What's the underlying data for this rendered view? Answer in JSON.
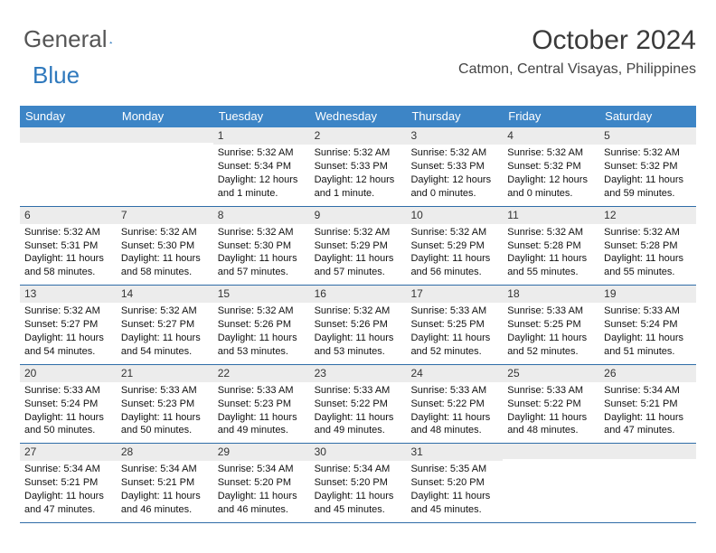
{
  "logo": {
    "word1": "General",
    "word2": "Blue"
  },
  "title": {
    "month": "October 2024",
    "location": "Catmon, Central Visayas, Philippines"
  },
  "colors": {
    "header_bg": "#3d85c6",
    "header_text": "#ffffff",
    "daynum_bg": "#ececec",
    "week_border": "#2f6da8",
    "logo_gray": "#555555",
    "logo_blue": "#2f79bd",
    "body_text": "#111111",
    "background": "#ffffff"
  },
  "day_names": [
    "Sunday",
    "Monday",
    "Tuesday",
    "Wednesday",
    "Thursday",
    "Friday",
    "Saturday"
  ],
  "weeks": [
    [
      {
        "n": "",
        "sr": "",
        "ss": "",
        "dl": ""
      },
      {
        "n": "",
        "sr": "",
        "ss": "",
        "dl": ""
      },
      {
        "n": "1",
        "sr": "Sunrise: 5:32 AM",
        "ss": "Sunset: 5:34 PM",
        "dl": "Daylight: 12 hours and 1 minute."
      },
      {
        "n": "2",
        "sr": "Sunrise: 5:32 AM",
        "ss": "Sunset: 5:33 PM",
        "dl": "Daylight: 12 hours and 1 minute."
      },
      {
        "n": "3",
        "sr": "Sunrise: 5:32 AM",
        "ss": "Sunset: 5:33 PM",
        "dl": "Daylight: 12 hours and 0 minutes."
      },
      {
        "n": "4",
        "sr": "Sunrise: 5:32 AM",
        "ss": "Sunset: 5:32 PM",
        "dl": "Daylight: 12 hours and 0 minutes."
      },
      {
        "n": "5",
        "sr": "Sunrise: 5:32 AM",
        "ss": "Sunset: 5:32 PM",
        "dl": "Daylight: 11 hours and 59 minutes."
      }
    ],
    [
      {
        "n": "6",
        "sr": "Sunrise: 5:32 AM",
        "ss": "Sunset: 5:31 PM",
        "dl": "Daylight: 11 hours and 58 minutes."
      },
      {
        "n": "7",
        "sr": "Sunrise: 5:32 AM",
        "ss": "Sunset: 5:30 PM",
        "dl": "Daylight: 11 hours and 58 minutes."
      },
      {
        "n": "8",
        "sr": "Sunrise: 5:32 AM",
        "ss": "Sunset: 5:30 PM",
        "dl": "Daylight: 11 hours and 57 minutes."
      },
      {
        "n": "9",
        "sr": "Sunrise: 5:32 AM",
        "ss": "Sunset: 5:29 PM",
        "dl": "Daylight: 11 hours and 57 minutes."
      },
      {
        "n": "10",
        "sr": "Sunrise: 5:32 AM",
        "ss": "Sunset: 5:29 PM",
        "dl": "Daylight: 11 hours and 56 minutes."
      },
      {
        "n": "11",
        "sr": "Sunrise: 5:32 AM",
        "ss": "Sunset: 5:28 PM",
        "dl": "Daylight: 11 hours and 55 minutes."
      },
      {
        "n": "12",
        "sr": "Sunrise: 5:32 AM",
        "ss": "Sunset: 5:28 PM",
        "dl": "Daylight: 11 hours and 55 minutes."
      }
    ],
    [
      {
        "n": "13",
        "sr": "Sunrise: 5:32 AM",
        "ss": "Sunset: 5:27 PM",
        "dl": "Daylight: 11 hours and 54 minutes."
      },
      {
        "n": "14",
        "sr": "Sunrise: 5:32 AM",
        "ss": "Sunset: 5:27 PM",
        "dl": "Daylight: 11 hours and 54 minutes."
      },
      {
        "n": "15",
        "sr": "Sunrise: 5:32 AM",
        "ss": "Sunset: 5:26 PM",
        "dl": "Daylight: 11 hours and 53 minutes."
      },
      {
        "n": "16",
        "sr": "Sunrise: 5:32 AM",
        "ss": "Sunset: 5:26 PM",
        "dl": "Daylight: 11 hours and 53 minutes."
      },
      {
        "n": "17",
        "sr": "Sunrise: 5:33 AM",
        "ss": "Sunset: 5:25 PM",
        "dl": "Daylight: 11 hours and 52 minutes."
      },
      {
        "n": "18",
        "sr": "Sunrise: 5:33 AM",
        "ss": "Sunset: 5:25 PM",
        "dl": "Daylight: 11 hours and 52 minutes."
      },
      {
        "n": "19",
        "sr": "Sunrise: 5:33 AM",
        "ss": "Sunset: 5:24 PM",
        "dl": "Daylight: 11 hours and 51 minutes."
      }
    ],
    [
      {
        "n": "20",
        "sr": "Sunrise: 5:33 AM",
        "ss": "Sunset: 5:24 PM",
        "dl": "Daylight: 11 hours and 50 minutes."
      },
      {
        "n": "21",
        "sr": "Sunrise: 5:33 AM",
        "ss": "Sunset: 5:23 PM",
        "dl": "Daylight: 11 hours and 50 minutes."
      },
      {
        "n": "22",
        "sr": "Sunrise: 5:33 AM",
        "ss": "Sunset: 5:23 PM",
        "dl": "Daylight: 11 hours and 49 minutes."
      },
      {
        "n": "23",
        "sr": "Sunrise: 5:33 AM",
        "ss": "Sunset: 5:22 PM",
        "dl": "Daylight: 11 hours and 49 minutes."
      },
      {
        "n": "24",
        "sr": "Sunrise: 5:33 AM",
        "ss": "Sunset: 5:22 PM",
        "dl": "Daylight: 11 hours and 48 minutes."
      },
      {
        "n": "25",
        "sr": "Sunrise: 5:33 AM",
        "ss": "Sunset: 5:22 PM",
        "dl": "Daylight: 11 hours and 48 minutes."
      },
      {
        "n": "26",
        "sr": "Sunrise: 5:34 AM",
        "ss": "Sunset: 5:21 PM",
        "dl": "Daylight: 11 hours and 47 minutes."
      }
    ],
    [
      {
        "n": "27",
        "sr": "Sunrise: 5:34 AM",
        "ss": "Sunset: 5:21 PM",
        "dl": "Daylight: 11 hours and 47 minutes."
      },
      {
        "n": "28",
        "sr": "Sunrise: 5:34 AM",
        "ss": "Sunset: 5:21 PM",
        "dl": "Daylight: 11 hours and 46 minutes."
      },
      {
        "n": "29",
        "sr": "Sunrise: 5:34 AM",
        "ss": "Sunset: 5:20 PM",
        "dl": "Daylight: 11 hours and 46 minutes."
      },
      {
        "n": "30",
        "sr": "Sunrise: 5:34 AM",
        "ss": "Sunset: 5:20 PM",
        "dl": "Daylight: 11 hours and 45 minutes."
      },
      {
        "n": "31",
        "sr": "Sunrise: 5:35 AM",
        "ss": "Sunset: 5:20 PM",
        "dl": "Daylight: 11 hours and 45 minutes."
      },
      {
        "n": "",
        "sr": "",
        "ss": "",
        "dl": ""
      },
      {
        "n": "",
        "sr": "",
        "ss": "",
        "dl": ""
      }
    ]
  ]
}
